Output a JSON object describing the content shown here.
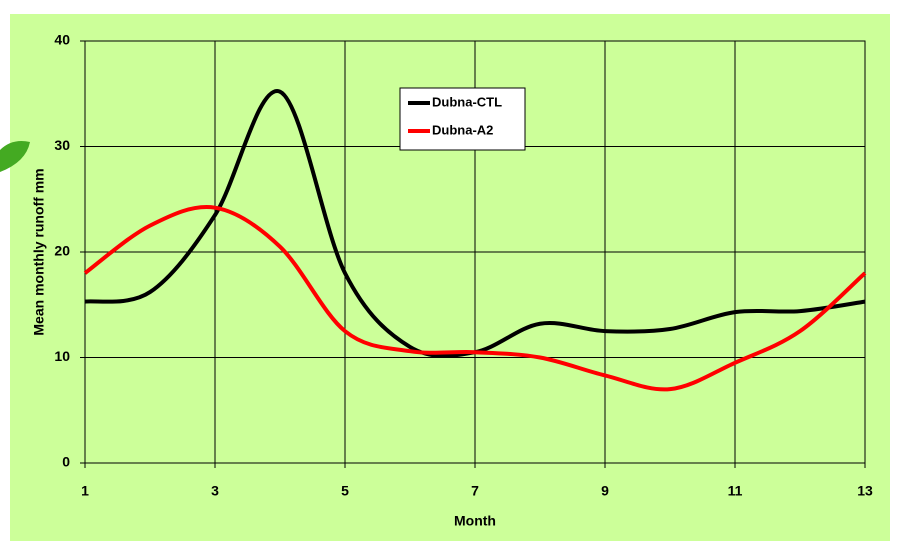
{
  "chart_data": {
    "type": "line",
    "xlabel": "Month",
    "ylabel": "Mean monthly runoff mm",
    "x": [
      1,
      2,
      3,
      4,
      5,
      6,
      7,
      8,
      9,
      10,
      11,
      12,
      13
    ],
    "series": [
      {
        "name": "Dubna-CTL",
        "color": "#000000",
        "values": [
          15.3,
          16.2,
          23.5,
          35.2,
          18,
          11,
          10.5,
          13.2,
          12.5,
          12.7,
          14.3,
          14.4,
          15.3
        ]
      },
      {
        "name": "Dubna-A2",
        "color": "#ff0000",
        "values": [
          18,
          22.5,
          24.2,
          20.5,
          12.5,
          10.6,
          10.5,
          10,
          8.3,
          7,
          9.5,
          12.5,
          18
        ]
      }
    ],
    "xlim": [
      1,
      13
    ],
    "xticks": [
      1,
      3,
      5,
      7,
      9,
      11,
      13
    ],
    "ylim": [
      0,
      40
    ],
    "yticks": [
      0,
      10,
      20,
      30,
      40
    ],
    "grid": true,
    "legend": "upper center"
  }
}
